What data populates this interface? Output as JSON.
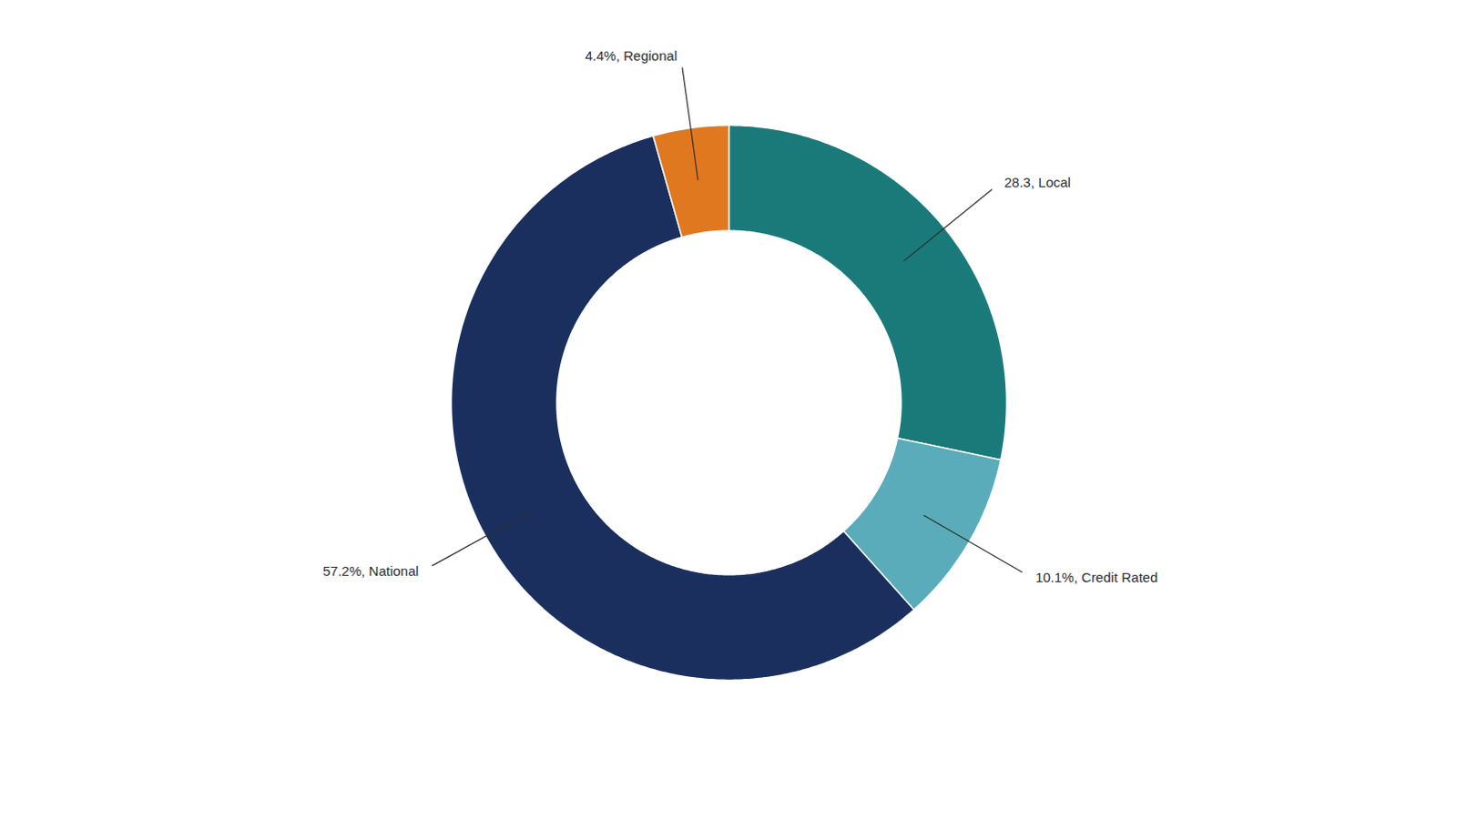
{
  "chart_data": {
    "type": "donut",
    "categories": [
      "Local",
      "Credit Rated",
      "National",
      "Regional"
    ],
    "values": [
      28.3,
      10.1,
      57.2,
      4.4
    ],
    "colors": [
      "#1a7a7a",
      "#5aacba",
      "#1a2f5e",
      "#e07820"
    ],
    "value_labels": [
      "28.3, Local",
      "10.1%, Credit Rated",
      "57.2%, National",
      "4.4%, Regional"
    ],
    "data_labels": true
  }
}
